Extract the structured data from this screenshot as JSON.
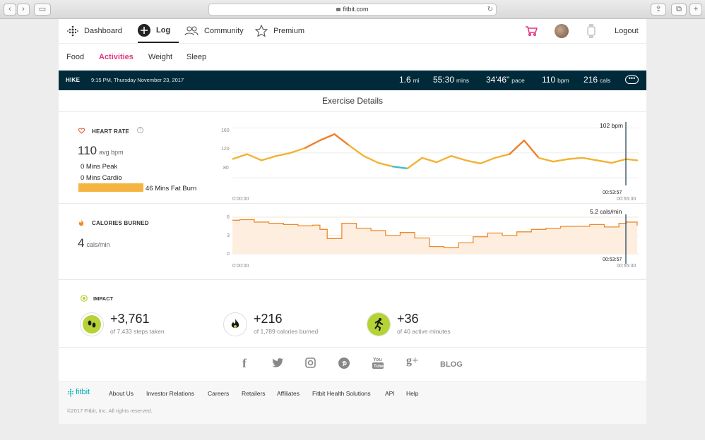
{
  "browser": {
    "url": "fitbit.com"
  },
  "nav": {
    "dashboard": "Dashboard",
    "log": "Log",
    "community": "Community",
    "premium": "Premium",
    "logout": "Logout"
  },
  "subnav": [
    "Food",
    "Activities",
    "Weight",
    "Sleep"
  ],
  "summary": {
    "type": "HIKE",
    "date": "9:15 PM, Thursday November 23, 2017",
    "distance": "1.6",
    "distance_unit": "mi",
    "duration": "55:30",
    "duration_unit": "mins",
    "pace": "34'46\"",
    "pace_unit": "pace",
    "hr": "110",
    "hr_unit": "bpm",
    "cals": "216",
    "cals_unit": "cals"
  },
  "section_title": "Exercise Details",
  "heart": {
    "label": "HEART RATE",
    "avg": "110",
    "avg_unit": "avg bpm",
    "peak": "0 Mins Peak",
    "cardio": "0 Mins Cardio",
    "fatburn": "46 Mins Fat Burn",
    "cursor_label": "102 bpm",
    "cursor_time": "00:53:57",
    "start": "0:00:00",
    "end": "00:55:30",
    "y_ticks": [
      "160",
      "120",
      "80"
    ]
  },
  "calories": {
    "label": "CALORIES BURNED",
    "value": "4",
    "unit": "cals/min",
    "cursor_label": "5.2 cals/min",
    "cursor_time": "00:53:57",
    "start": "0:00:00",
    "end": "00:55:30",
    "y_ticks": [
      "6",
      "3",
      "0"
    ]
  },
  "impact": {
    "label": "IMPACT",
    "items": [
      {
        "value": "+3,761",
        "sub": "of 7,433 steps taken"
      },
      {
        "value": "+216",
        "sub": "of 1,789 calories burned"
      },
      {
        "value": "+36",
        "sub": "of 40 active minutes"
      }
    ]
  },
  "social": {
    "blog": "BLOG"
  },
  "footer": {
    "brand": "fitbit",
    "links": [
      "About Us",
      "Investor Relations",
      "Careers",
      "Retailers",
      "Affiliates",
      "Fitbit Health Solutions",
      "API",
      "Help"
    ],
    "copyright": "©2017 Fitbit, Inc. All rights reserved."
  },
  "chart_data": [
    {
      "type": "line",
      "title": "HEART RATE",
      "ylim": [
        70,
        165
      ],
      "x": [
        0,
        2,
        4,
        6,
        8,
        10,
        12,
        14,
        16,
        18,
        20,
        22,
        24,
        26,
        28,
        30,
        32,
        34,
        36,
        38,
        40,
        42,
        44,
        46,
        48,
        50,
        52,
        54,
        55.5
      ],
      "values": [
        110,
        118,
        108,
        115,
        120,
        128,
        140,
        150,
        132,
        115,
        104,
        98,
        95,
        112,
        105,
        115,
        108,
        103,
        112,
        118,
        140,
        112,
        106,
        110,
        112,
        108,
        104,
        110,
        108
      ]
    },
    {
      "type": "line",
      "title": "CALORIES BURNED",
      "ylim": [
        0,
        6
      ],
      "x": [
        0,
        1,
        3,
        5,
        7,
        9,
        11,
        12,
        13,
        15,
        17,
        19,
        21,
        23,
        25,
        27,
        29,
        31,
        33,
        35,
        37,
        39,
        41,
        43,
        45,
        47,
        49,
        51,
        53,
        54,
        55.5
      ],
      "values": [
        5.5,
        5.6,
        5.2,
        5.0,
        4.8,
        4.6,
        4.7,
        4.0,
        2.5,
        5.0,
        4.2,
        3.8,
        3.0,
        3.5,
        2.6,
        1.2,
        1.0,
        1.8,
        2.8,
        3.4,
        3.0,
        3.6,
        4.0,
        4.2,
        4.5,
        4.5,
        4.8,
        4.4,
        5.0,
        5.2,
        4.6
      ]
    }
  ]
}
